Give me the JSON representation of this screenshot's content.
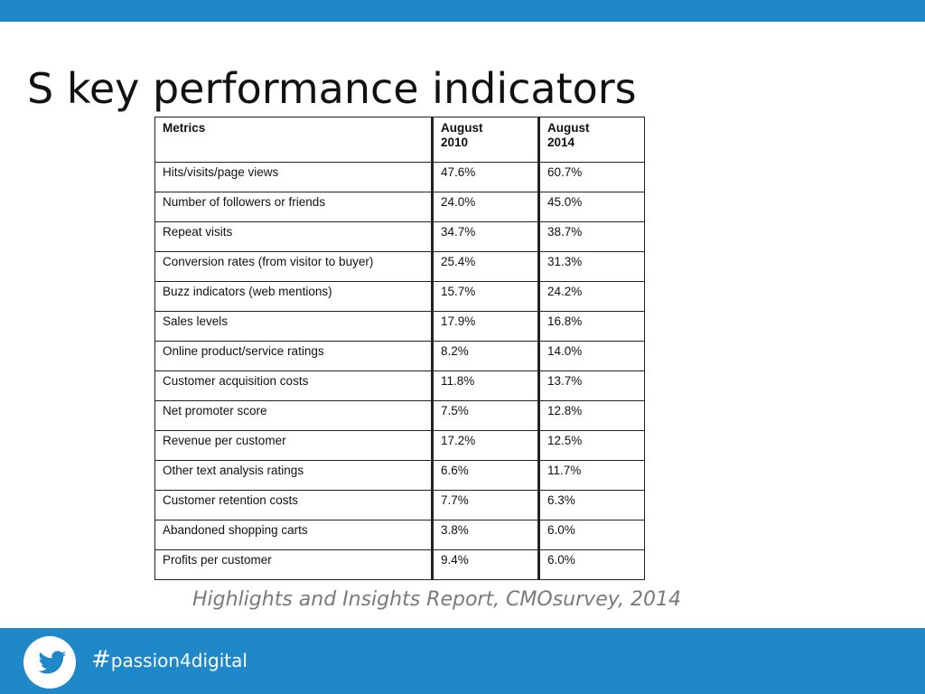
{
  "colors": {
    "bar": "#1e88c9",
    "title": "#111111",
    "caption": "#7a7a7a"
  },
  "title": "S key performance indicators",
  "table": {
    "headers": {
      "metric": "Metrics",
      "y1_line1": "August",
      "y1_line2": "2010",
      "y2_line1": "August",
      "y2_line2": "2014"
    },
    "rows": [
      [
        "Hits/visits/page views",
        "47.6%",
        "60.7%"
      ],
      [
        "Number of followers or friends",
        "24.0%",
        "45.0%"
      ],
      [
        "Repeat visits",
        "34.7%",
        "38.7%"
      ],
      [
        "Conversion rates (from visitor to buyer)",
        "25.4%",
        "31.3%"
      ],
      [
        "Buzz indicators (web mentions)",
        "15.7%",
        "24.2%"
      ],
      [
        "Sales levels",
        "17.9%",
        "16.8%"
      ],
      [
        "Online product/service ratings",
        "8.2%",
        "14.0%"
      ],
      [
        "Customer acquisition costs",
        "11.8%",
        "13.7%"
      ],
      [
        "Net promoter score",
        "7.5%",
        "12.8%"
      ],
      [
        "Revenue per customer",
        "17.2%",
        "12.5%"
      ],
      [
        "Other text analysis ratings",
        "6.6%",
        "11.7%"
      ],
      [
        "Customer retention costs",
        "7.7%",
        "6.3%"
      ],
      [
        "Abandoned shopping carts",
        "3.8%",
        "6.0%"
      ],
      [
        "Profits per customer",
        "9.4%",
        "6.0%"
      ]
    ]
  },
  "caption": "Highlights and Insights Report, CMOsurvey, 2014",
  "footer": {
    "icon": "twitter-bird-icon",
    "hash_symbol": "#",
    "hashtag_text": "passion4digital"
  }
}
